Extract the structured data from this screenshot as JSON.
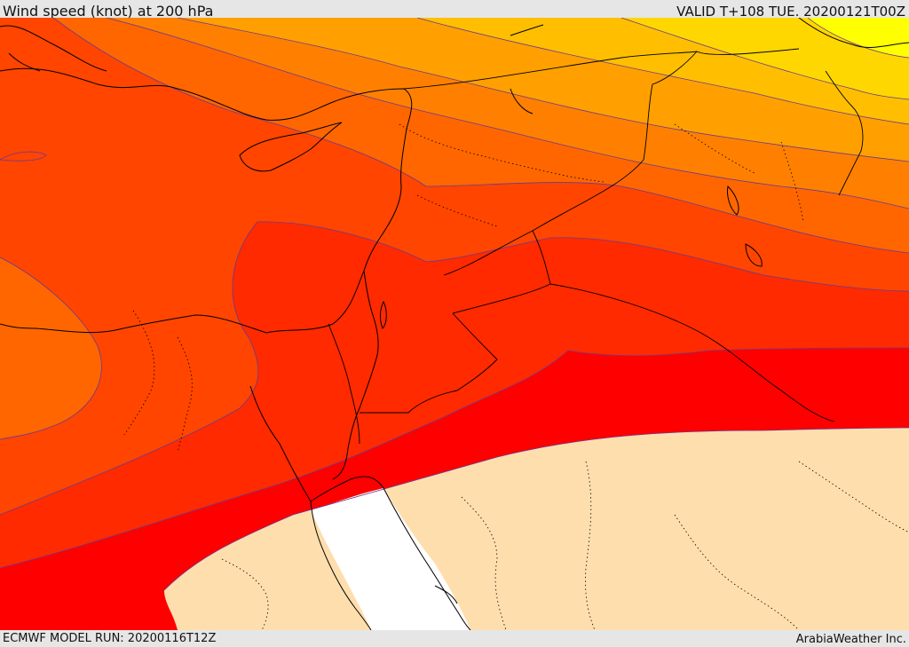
{
  "header": {
    "title": "Wind speed (knot) at 200 hPa",
    "valid": "VALID T+108 TUE. 20200121T00Z"
  },
  "footer": {
    "model_run": "ECMWF MODEL RUN: 20200116T12Z",
    "credit": "ArabiaWeather Inc."
  },
  "colors": {
    "yellow": "#ffff00",
    "gold": "#ffd700",
    "amber": "#ffbf00",
    "orange": "#ffa000",
    "dark_orange": "#ff8000",
    "orange_red": "#ff6600",
    "red_orange": "#ff4500",
    "scarlet": "#ff2a00",
    "red": "#ff0000",
    "low_wind": "#ffdead",
    "calm": "#ffffff",
    "contour": "#6a3a90",
    "coast": "#000000"
  }
}
